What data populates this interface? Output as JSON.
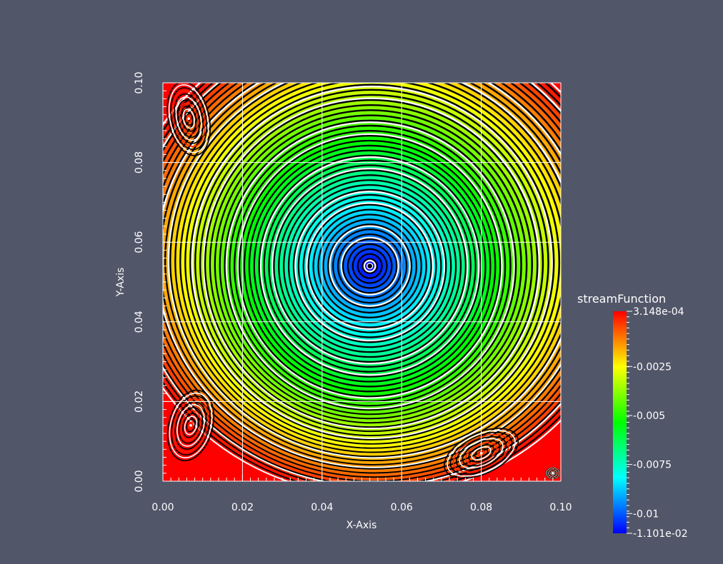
{
  "chart_data": {
    "type": "heatmap",
    "title": "",
    "xlabel": "X-Axis",
    "ylabel": "Y-Axis",
    "xlim": [
      0.0,
      0.1
    ],
    "ylim": [
      0.0,
      0.1
    ],
    "x_ticks": [
      "0.00",
      "0.02",
      "0.04",
      "0.06",
      "0.08",
      "0.10"
    ],
    "y_ticks": [
      "0.00",
      "0.02",
      "0.04",
      "0.06",
      "0.08",
      "0.10"
    ],
    "x_tick_values": [
      0.0,
      0.02,
      0.04,
      0.06,
      0.08,
      0.1
    ],
    "y_tick_values": [
      0.0,
      0.02,
      0.04,
      0.06,
      0.08,
      0.1
    ],
    "grid": true,
    "field_name": "streamFunction",
    "value_range": [
      -0.01101,
      0.0003148
    ],
    "colorbar_ticks": [
      {
        "value": 0.0003148,
        "label": "3.148e-04"
      },
      {
        "value": -0.0025,
        "label": "-0.0025"
      },
      {
        "value": -0.005,
        "label": "-0.005"
      },
      {
        "value": -0.0075,
        "label": "-0.0075"
      },
      {
        "value": -0.01,
        "label": "-0.01"
      },
      {
        "value": -0.01101,
        "label": "-1.101e-02"
      }
    ],
    "colormap": [
      "#ff0000",
      "#ffff00",
      "#00ff00",
      "#00ffff",
      "#0000ff"
    ],
    "primary_vortex": {
      "x": 0.052,
      "y": 0.054
    },
    "secondary_vortices": [
      {
        "x": 0.0065,
        "y": 0.091
      },
      {
        "x": 0.007,
        "y": 0.014
      },
      {
        "x": 0.08,
        "y": 0.007
      },
      {
        "x": 0.098,
        "y": 0.002
      }
    ],
    "legend_placement": "right"
  },
  "colors": {
    "background": "#525669",
    "grid": "#ffffff",
    "streamline": "#000000"
  }
}
